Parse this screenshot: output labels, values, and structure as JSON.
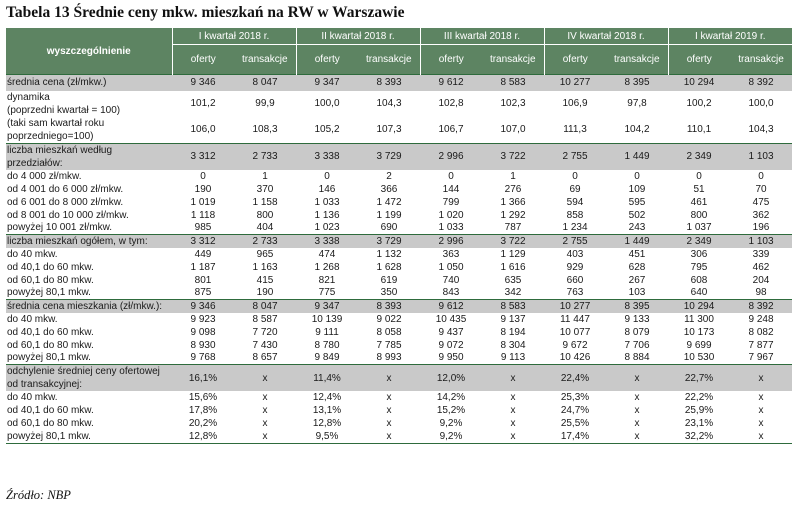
{
  "title": "Tabela 13 Średnie ceny mkw. mieszkań na RW w Warszawie",
  "header": {
    "label": "wyszczególnienie",
    "quarters": [
      "I kwartał 2018 r.",
      "II kwartał 2018 r.",
      "III kwartał 2018 r.",
      "IV kwartał 2018 r.",
      "I kwartał 2019 r."
    ],
    "sub": [
      "oferty",
      "transakcje"
    ]
  },
  "rows": [
    {
      "label": "średnia cena (zł/mkw.)",
      "v": [
        "9 346",
        "8 047",
        "9 347",
        "8 393",
        "9 612",
        "8 583",
        "10 277",
        "8 395",
        "10 294",
        "8 392"
      ]
    },
    {
      "label": "dynamika\n(poprzedni kwartał = 100)",
      "v": [
        "101,2",
        "99,9",
        "100,0",
        "104,3",
        "102,8",
        "102,3",
        "106,9",
        "97,8",
        "100,2",
        "100,0"
      ]
    },
    {
      "label": "(taki sam kwartał roku\npoprzedniego=100)",
      "v": [
        "106,0",
        "108,3",
        "105,2",
        "107,3",
        "106,7",
        "107,0",
        "111,3",
        "104,2",
        "110,1",
        "104,3"
      ]
    },
    {
      "label": "liczba mieszkań według\nprzedziałów:",
      "v": [
        "3 312",
        "2 733",
        "3 338",
        "3 729",
        "2 996",
        "3 722",
        "2 755",
        "1 449",
        "2 349",
        "1 103"
      ]
    },
    {
      "label": "do 4 000 zł/mkw.",
      "v": [
        "0",
        "1",
        "0",
        "2",
        "0",
        "1",
        "0",
        "0",
        "0",
        "0"
      ]
    },
    {
      "label": "od 4 001 do 6 000 zł/mkw.",
      "v": [
        "190",
        "370",
        "146",
        "366",
        "144",
        "276",
        "69",
        "109",
        "51",
        "70"
      ]
    },
    {
      "label": "od 6 001 do 8 000 zł/mkw.",
      "v": [
        "1 019",
        "1 158",
        "1 033",
        "1 472",
        "799",
        "1 366",
        "594",
        "595",
        "461",
        "475"
      ]
    },
    {
      "label": "od 8 001 do 10 000 zł/mkw.",
      "v": [
        "1 118",
        "800",
        "1 136",
        "1 199",
        "1 020",
        "1 292",
        "858",
        "502",
        "800",
        "362"
      ]
    },
    {
      "label": "powyżej 10 001 zł/mkw.",
      "v": [
        "985",
        "404",
        "1 023",
        "690",
        "1 033",
        "787",
        "1 234",
        "243",
        "1 037",
        "196"
      ]
    },
    {
      "label": "liczba mieszkań ogółem, w tym:",
      "v": [
        "3 312",
        "2 733",
        "3 338",
        "3 729",
        "2 996",
        "3 722",
        "2 755",
        "1 449",
        "2 349",
        "1 103"
      ]
    },
    {
      "label": "do 40 mkw.",
      "v": [
        "449",
        "965",
        "474",
        "1 132",
        "363",
        "1 129",
        "403",
        "451",
        "306",
        "339"
      ]
    },
    {
      "label": "od 40,1 do 60 mkw.",
      "v": [
        "1 187",
        "1 163",
        "1 268",
        "1 628",
        "1 050",
        "1 616",
        "929",
        "628",
        "795",
        "462"
      ]
    },
    {
      "label": "od 60,1 do 80 mkw.",
      "v": [
        "801",
        "415",
        "821",
        "619",
        "740",
        "635",
        "660",
        "267",
        "608",
        "204"
      ]
    },
    {
      "label": "powyżej 80,1 mkw.",
      "v": [
        "875",
        "190",
        "775",
        "350",
        "843",
        "342",
        "763",
        "103",
        "640",
        "98"
      ]
    },
    {
      "label": "średnia cena mieszkania (zł/mkw.):",
      "v": [
        "9 346",
        "8 047",
        "9 347",
        "8 393",
        "9 612",
        "8 583",
        "10 277",
        "8 395",
        "10 294",
        "8 392"
      ]
    },
    {
      "label": "do 40 mkw.",
      "v": [
        "9 923",
        "8 587",
        "10 139",
        "9 022",
        "10 435",
        "9 137",
        "11 447",
        "9 133",
        "11 300",
        "9 248"
      ]
    },
    {
      "label": "od 40,1 do 60 mkw.",
      "v": [
        "9 098",
        "7 720",
        "9 111",
        "8 058",
        "9 437",
        "8 194",
        "10 077",
        "8 079",
        "10 173",
        "8 082"
      ]
    },
    {
      "label": "od 60,1 do 80 mkw.",
      "v": [
        "8 930",
        "7 430",
        "8 780",
        "7 785",
        "9 072",
        "8 304",
        "9 672",
        "7 706",
        "9 699",
        "7 877"
      ]
    },
    {
      "label": "powyżej 80,1 mkw.",
      "v": [
        "9 768",
        "8 657",
        "9 849",
        "8 993",
        "9 950",
        "9 113",
        "10 426",
        "8 884",
        "10 530",
        "7 967"
      ]
    },
    {
      "label": "odchylenie średniej ceny ofertowej\nod transakcyjnej:",
      "v": [
        "16,1%",
        "x",
        "11,4%",
        "x",
        "12,0%",
        "x",
        "22,4%",
        "x",
        "22,7%",
        "x"
      ]
    },
    {
      "label": "do 40 mkw.",
      "v": [
        "15,6%",
        "x",
        "12,4%",
        "x",
        "14,2%",
        "x",
        "25,3%",
        "x",
        "22,2%",
        "x"
      ]
    },
    {
      "label": "od 40,1 do 60 mkw.",
      "v": [
        "17,8%",
        "x",
        "13,1%",
        "x",
        "15,2%",
        "x",
        "24,7%",
        "x",
        "25,9%",
        "x"
      ]
    },
    {
      "label": "od 60,1 do 80 mkw.",
      "v": [
        "20,2%",
        "x",
        "12,8%",
        "x",
        "9,2%",
        "x",
        "25,5%",
        "x",
        "23,1%",
        "x"
      ]
    },
    {
      "label": "powyżej 80,1 mkw.",
      "v": [
        "12,8%",
        "x",
        "9,5%",
        "x",
        "9,2%",
        "x",
        "17,4%",
        "x",
        "32,2%",
        "x"
      ]
    }
  ],
  "source": "Źródło: NBP"
}
